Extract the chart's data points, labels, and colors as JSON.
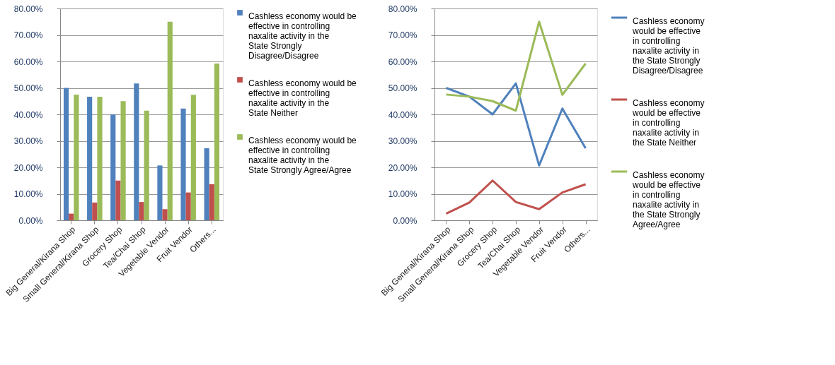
{
  "chart_data": [
    {
      "type": "bar",
      "categories": [
        "Big General/Kirana Shop",
        "Small General/Kirana Shop",
        "Grocery Shop",
        "Tea/Chai Shop",
        "Vegetable Vendor",
        "Fruit Vendor",
        "Others..."
      ],
      "series": [
        {
          "name": "Cashless economy would be effective in controlling naxalite activity in the State Strongly Disagree/Disagree",
          "color": "#4f81bd",
          "values": [
            50.0,
            46.7,
            40.0,
            51.7,
            20.7,
            42.2,
            27.2
          ]
        },
        {
          "name": "Cashless economy would be effective in controlling naxalite activity in the State Neither",
          "color": "#c0504d",
          "values": [
            2.5,
            6.7,
            15.0,
            6.9,
            4.2,
            10.5,
            13.6
          ]
        },
        {
          "name": "Cashless economy would be effective in controlling naxalite activity in the State Strongly Agree/Agree",
          "color": "#9bbb59",
          "values": [
            47.5,
            46.7,
            45.0,
            41.4,
            75.0,
            47.4,
            59.2
          ]
        }
      ],
      "ylim": [
        0,
        80
      ],
      "yticks": [
        {
          "value": 0,
          "label": "0.00%"
        },
        {
          "value": 10,
          "label": "10.00%"
        },
        {
          "value": 20,
          "label": "20.00%"
        },
        {
          "value": 30,
          "label": "30.00%"
        },
        {
          "value": 40,
          "label": "40.00%"
        },
        {
          "value": 50,
          "label": "50.00%"
        },
        {
          "value": 60,
          "label": "60.00%"
        },
        {
          "value": 70,
          "label": "70.00%"
        },
        {
          "value": 80,
          "label": "80.00%"
        }
      ],
      "grid": "y",
      "legend": "right"
    },
    {
      "type": "line",
      "categories": [
        "Big General/Kirana Shop",
        "Small General/Kirana Shop",
        "Grocery Shop",
        "Tea/Chai Shop",
        "Vegetable Vendor",
        "Fruit Vendor",
        "Others..."
      ],
      "series": [
        {
          "name": "Cashless economy would be effective in controlling naxalite activity in the State Strongly Disagree/Disagree",
          "color": "#4f81bd",
          "values": [
            50.0,
            46.7,
            40.0,
            51.7,
            20.7,
            42.2,
            27.2
          ]
        },
        {
          "name": "Cashless economy would be effective in controlling naxalite activity in the State Neither",
          "color": "#c0504d",
          "values": [
            2.5,
            6.7,
            15.0,
            6.9,
            4.2,
            10.5,
            13.6
          ]
        },
        {
          "name": "Cashless economy would be effective in controlling naxalite activity in the State Strongly Agree/Agree",
          "color": "#9bbb59",
          "values": [
            47.5,
            46.7,
            45.0,
            41.4,
            75.0,
            47.4,
            59.2
          ]
        }
      ],
      "ylim": [
        0,
        80
      ],
      "yticks": [
        {
          "value": 0,
          "label": "0.00%"
        },
        {
          "value": 10,
          "label": "10.00%"
        },
        {
          "value": 20,
          "label": "20.00%"
        },
        {
          "value": 30,
          "label": "30.00%"
        },
        {
          "value": 40,
          "label": "40.00%"
        },
        {
          "value": 50,
          "label": "50.00%"
        },
        {
          "value": 60,
          "label": "60.00%"
        },
        {
          "value": 70,
          "label": "70.00%"
        },
        {
          "value": 80,
          "label": "80.00%"
        }
      ],
      "grid": "y",
      "legend": "right",
      "marker": "none",
      "line_style": "solid"
    }
  ]
}
